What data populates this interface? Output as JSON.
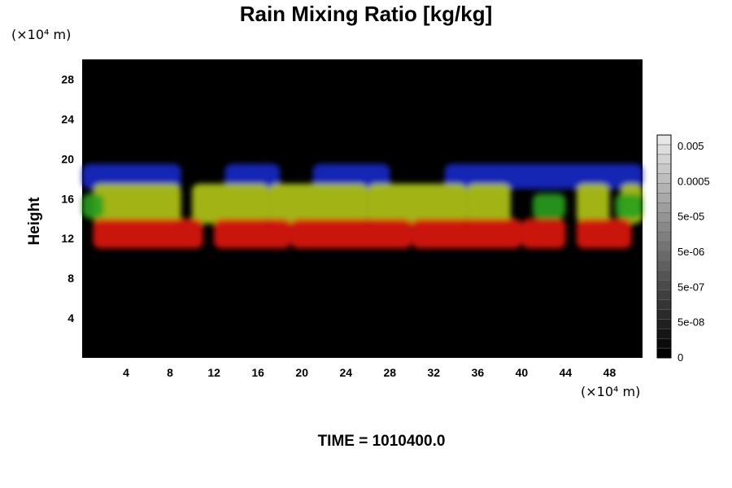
{
  "chart_data": {
    "type": "heatmap",
    "title": "Rain Mixing Ratio [kg/kg]",
    "ylabel": "Height",
    "y_unit": "(×10⁴ m)",
    "x_unit": "(×10⁴ m)",
    "xlim": [
      0,
      51
    ],
    "ylim": [
      0,
      30
    ],
    "x_ticks": [
      4,
      8,
      12,
      16,
      20,
      24,
      28,
      32,
      36,
      40,
      44,
      48
    ],
    "y_ticks": [
      4,
      8,
      12,
      16,
      20,
      24,
      28
    ],
    "background": "#000000",
    "layers": [
      {
        "color": "#1428c8",
        "y_range": [
          17,
          19.5
        ],
        "segments": [
          [
            0,
            9
          ],
          [
            13,
            18
          ],
          [
            21,
            28
          ],
          [
            33,
            51
          ]
        ]
      },
      {
        "color": "#b4c814",
        "y_range": [
          13.5,
          17.5
        ],
        "segments": [
          [
            1,
            9
          ],
          [
            10,
            17
          ],
          [
            17,
            26
          ],
          [
            26,
            35
          ],
          [
            35,
            39
          ],
          [
            45,
            48
          ],
          [
            49,
            51
          ]
        ]
      },
      {
        "color": "#28a01e",
        "y_range": [
          14,
          16.5
        ],
        "segments": [
          [
            0,
            2
          ],
          [
            41,
            44
          ],
          [
            48.5,
            51
          ]
        ]
      },
      {
        "color": "#e0140a",
        "y_range": [
          11,
          14
        ],
        "segments": [
          [
            1,
            11
          ],
          [
            12,
            19
          ],
          [
            19,
            30
          ],
          [
            30,
            40
          ],
          [
            40,
            44
          ],
          [
            45,
            50
          ]
        ]
      }
    ],
    "colorbar": {
      "scale": "log",
      "levels": 23,
      "tick_labels": [
        "0.005",
        "0.0005",
        "5e-05",
        "5e-06",
        "5e-07",
        "5e-08",
        "0"
      ],
      "colors": [
        "#000000",
        "#e8e8e8"
      ]
    },
    "time_label": "TIME = 1010400.0"
  }
}
